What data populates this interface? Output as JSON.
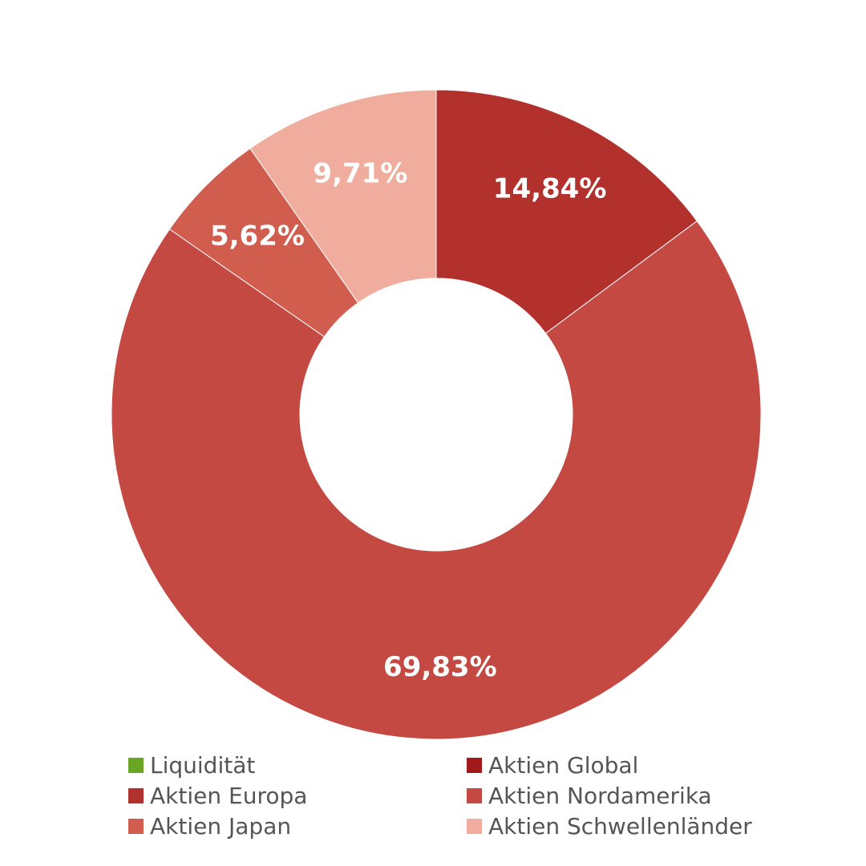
{
  "chart_data": {
    "type": "pie",
    "style": "donut",
    "start": "top",
    "direction": "clockwise",
    "slices": [
      {
        "category": "Liquidität",
        "value": 0,
        "label": "",
        "color": "#6aa626"
      },
      {
        "category": "Aktien Global",
        "value": 0,
        "label": "",
        "color": "#a11a1a"
      },
      {
        "category": "Aktien Europa",
        "value": 14.84,
        "label": "14,84%",
        "color": "#b3312d"
      },
      {
        "category": "Aktien Nordamerika",
        "value": 69.83,
        "label": "69,83%",
        "color": "#c34942"
      },
      {
        "category": "Aktien Japan",
        "value": 5.62,
        "label": "5,62%",
        "color": "#d05d4e"
      },
      {
        "category": "Aktien Schwellenländer",
        "value": 9.71,
        "label": "9,71%",
        "color": "#f0ad9d"
      }
    ],
    "legend": {
      "placement": "bottom",
      "items": [
        {
          "label": "Liquidität",
          "color": "#6aa626"
        },
        {
          "label": "Aktien Global",
          "color": "#a11a1a"
        },
        {
          "label": "Aktien Europa",
          "color": "#b3312d"
        },
        {
          "label": "Aktien Nordamerika",
          "color": "#c34942"
        },
        {
          "label": "Aktien Japan",
          "color": "#d05d4e"
        },
        {
          "label": "Aktien Schwellenländer",
          "color": "#f0ad9d"
        }
      ]
    }
  }
}
